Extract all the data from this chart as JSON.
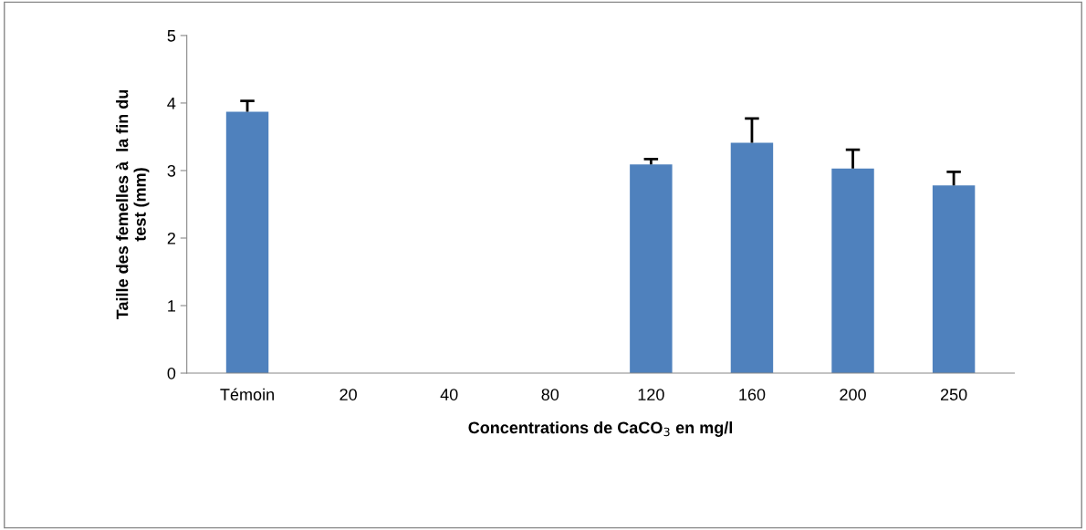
{
  "chart_data": {
    "type": "bar",
    "xlabel": "Concentrations de CaCO$_{3}$ en mg/l",
    "ylabel": "Taille des femelles à  la fin du\ntest (mm)",
    "categories": [
      "Témoin",
      "20",
      "40",
      "80",
      "120",
      "160",
      "200",
      "250"
    ],
    "values": [
      3.87,
      null,
      null,
      null,
      3.09,
      3.41,
      3.03,
      2.78
    ],
    "errors": [
      [
        3.87,
        4.03
      ],
      null,
      null,
      null,
      [
        3.09,
        3.17
      ],
      [
        3.41,
        3.77
      ],
      [
        3.03,
        3.31
      ],
      [
        2.78,
        2.98
      ]
    ],
    "color": "#4f81bd",
    "ylim": [
      0,
      5
    ],
    "yticks": [
      0,
      1,
      2,
      3,
      4,
      5
    ],
    "grid": false,
    "legend": false
  }
}
